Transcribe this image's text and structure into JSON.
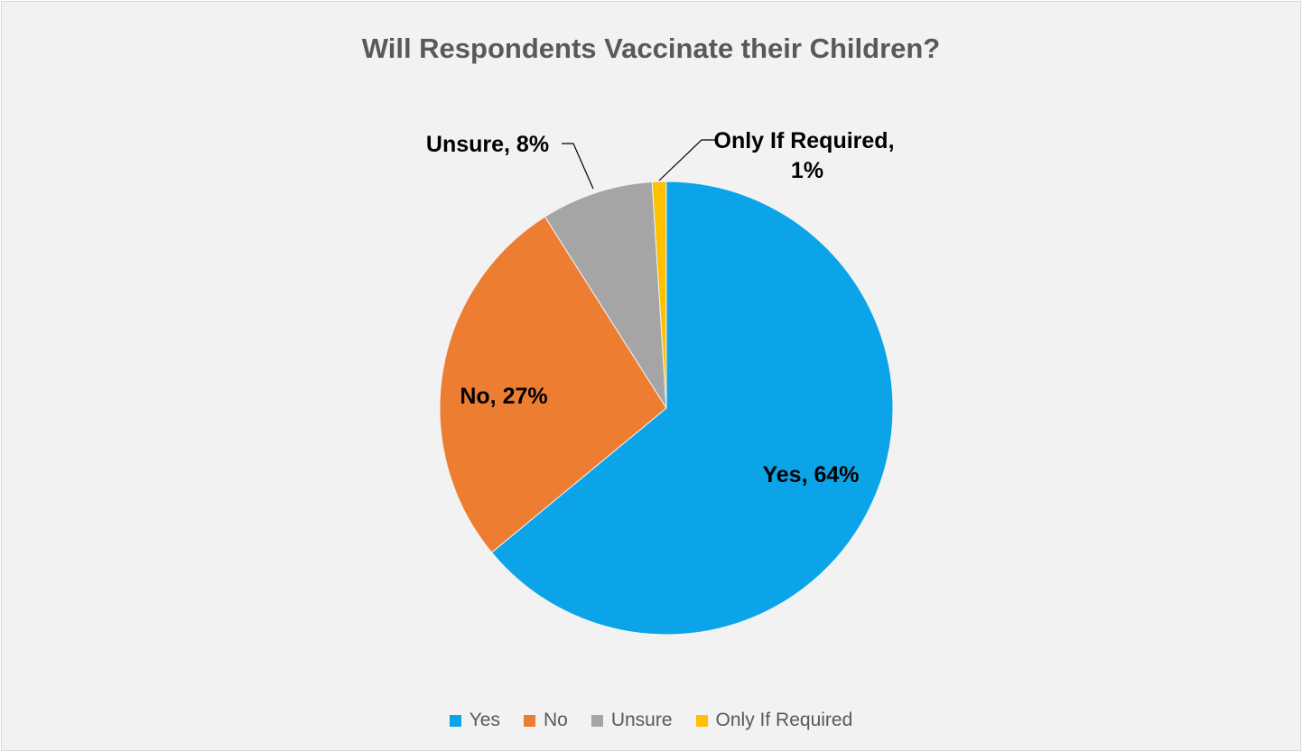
{
  "chart_data": {
    "type": "pie",
    "title": "Will Respondents Vaccinate their Children?",
    "categories": [
      "Yes",
      "No",
      "Unsure",
      "Only If Required"
    ],
    "values": [
      64,
      27,
      8,
      1
    ],
    "unit": "%",
    "data_labels": [
      "Yes, 64%",
      "No, 27%",
      "Unsure, 8%",
      "Only If Required, 1%"
    ],
    "colors": [
      "#0ba4e8",
      "#ed7d31",
      "#a5a5a5",
      "#ffc000"
    ],
    "legend": {
      "position": "bottom",
      "entries": [
        "Yes",
        "No",
        "Unsure",
        "Only If Required"
      ]
    }
  }
}
